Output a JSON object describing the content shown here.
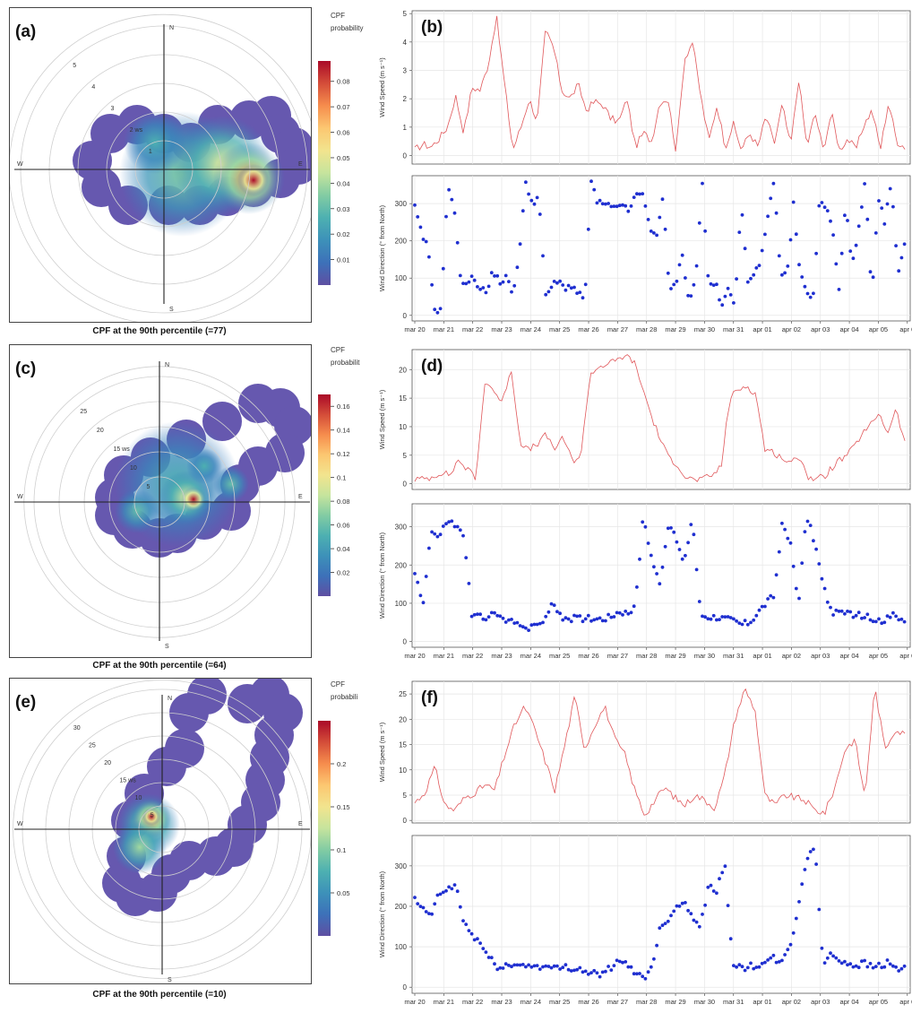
{
  "panels": [
    {
      "cpf": {
        "label": "(a)",
        "legend_title": [
          "CPF",
          "probability"
        ],
        "caption": "CPF at the 90th percentile (=77)",
        "ring_labels": [
          "1",
          "2 ws",
          "3",
          "4",
          "5"
        ],
        "ring_values": [
          1,
          2,
          3,
          4,
          5
        ],
        "compass": [
          "N",
          "E",
          "S",
          "W"
        ],
        "colorbar_ticks": [
          "0.01",
          "0.02",
          "0.03",
          "0.04",
          "0.05",
          "0.06",
          "0.07",
          "0.08"
        ],
        "colorbar_range": [
          0,
          0.088
        ],
        "hotspot_value": "0.088"
      },
      "wind_speed": {
        "label": "(b)",
        "ylabel": "Wind Speed (m s⁻¹)",
        "yticks": [
          "0",
          "1",
          "2",
          "3",
          "4",
          "5"
        ],
        "ylim": [
          -0.3,
          5.1
        ]
      },
      "wind_dir": {
        "ylabel": "Wind Direction (° from North)",
        "yticks": [
          "0",
          "100",
          "200",
          "300"
        ],
        "ylim": [
          -15,
          375
        ]
      }
    },
    {
      "cpf": {
        "label": "(c)",
        "legend_title": [
          "CPF",
          "probabilit"
        ],
        "caption": "CPF at the 90th percentile (=64)",
        "ring_labels": [
          "5",
          "10",
          "15 ws",
          "20",
          "25"
        ],
        "ring_values": [
          5,
          10,
          15,
          20,
          25
        ],
        "compass": [
          "N",
          "E",
          "S",
          "W"
        ],
        "colorbar_ticks": [
          "0.02",
          "0.04",
          "0.06",
          "0.08",
          "0.1",
          "0.12",
          "0.14",
          "0.16"
        ],
        "colorbar_range": [
          0,
          0.17
        ],
        "hotspot_value": "0.17"
      },
      "wind_speed": {
        "label": "(d)",
        "ylabel": "Wind Speed (m s⁻¹)",
        "yticks": [
          "0",
          "5",
          "10",
          "15",
          "20"
        ],
        "ylim": [
          -1,
          23.5
        ]
      },
      "wind_dir": {
        "ylabel": "Wind Direction (° from North)",
        "yticks": [
          "0",
          "100",
          "200",
          "300"
        ],
        "ylim": [
          -15,
          360
        ]
      }
    },
    {
      "cpf": {
        "label": "(e)",
        "legend_title": [
          "CPF",
          "probabili"
        ],
        "caption": "CPF at the 90th percentile (=10)",
        "ring_labels": [
          "5",
          "10",
          "15 ws",
          "20",
          "25",
          "30"
        ],
        "ring_values": [
          5,
          10,
          15,
          20,
          25,
          30
        ],
        "compass": [
          "N",
          "E",
          "S",
          "W"
        ],
        "colorbar_ticks": [
          "0.05",
          "0.1",
          "0.15",
          "0.2"
        ],
        "colorbar_range": [
          0,
          0.25
        ],
        "hotspot_value": "0.25"
      },
      "wind_speed": {
        "label": "(f)",
        "ylabel": "Wind Speed (m s⁻¹)",
        "yticks": [
          "0",
          "5",
          "10",
          "15",
          "20",
          "25"
        ],
        "ylim": [
          -0.5,
          27.5
        ]
      },
      "wind_dir": {
        "ylabel": "Wind Direction (° from North)",
        "yticks": [
          "0",
          "100",
          "200",
          "300"
        ],
        "ylim": [
          -15,
          375
        ]
      }
    }
  ],
  "date_axis": {
    "labels": [
      "mar 20",
      "mar 21",
      "mar 22",
      "mar 23",
      "mar 24",
      "mar 25",
      "mar 26",
      "mar 27",
      "mar 28",
      "mar 29",
      "mar 30",
      "mar 31",
      "apr 01",
      "apr 02",
      "apr 03",
      "apr 04",
      "apr 05",
      "apr 0"
    ]
  },
  "chart_data": [
    {
      "type": "heatmap",
      "description_free": true,
      "r_unit": "ws",
      "hotspots": [
        {
          "dir_deg": 100,
          "ws": 2.7,
          "cpf": 0.088
        },
        {
          "dir_deg": 80,
          "ws": 3.2,
          "cpf": 0.045
        },
        {
          "dir_deg": 115,
          "ws": 2.2,
          "cpf": 0.05
        },
        {
          "dir_deg": 50,
          "ws": 1.9,
          "cpf": 0.03
        }
      ]
    },
    {
      "type": "line",
      "x_start": "mar 20",
      "points_per_day": 8,
      "ws_anchors": [
        0.2,
        0.4,
        0.3,
        0.6,
        1.0,
        2.1,
        0.8,
        2.4,
        2.3,
        3.2,
        4.9,
        2.5,
        0.2,
        1.0,
        2.0,
        1.2,
        4.4,
        3.8,
        2.3,
        2.0,
        2.5,
        1.6,
        1.9,
        1.8,
        1.3,
        1.2,
        2.0,
        0.3,
        0.8,
        0.5,
        1.9,
        2.0,
        0.1,
        3.4,
        4.0,
        2.1,
        0.5,
        1.8,
        0.3,
        1.1,
        0.2,
        0.8,
        0.3,
        1.4,
        0.4,
        1.8,
        0.3,
        2.7,
        0.3,
        1.5,
        0.2,
        1.5,
        0.2,
        0.6,
        0.2,
        1.1,
        1.6,
        0.2,
        1.9,
        0.5,
        0.3
      ]
    },
    {
      "type": "scatter",
      "wd_anchors": [
        290,
        220,
        180,
        20,
        10,
        340,
        300,
        95,
        90,
        100,
        75,
        60,
        120,
        90,
        100,
        60,
        160,
        360,
        300,
        320,
        50,
        80,
        90,
        75,
        80,
        60,
        35,
        360,
        300,
        300,
        290,
        285,
        300,
        280,
        330,
        320,
        230,
        215,
        320,
        60,
        90,
        160,
        40,
        90,
        360,
        80,
        90,
        20,
        70,
        30,
        310,
        80,
        120,
        150,
        250,
        360,
        120,
        100,
        300,
        110,
        70,
        40,
        310,
        290,
        230,
        60,
        310,
        130,
        230,
        360,
        40,
        310,
        250,
        360,
        100,
        200
      ]
    },
    {
      "type": "heatmap",
      "r_unit": "ws",
      "hotspots": [
        {
          "dir_deg": 105,
          "ws": 8.0,
          "cpf": 0.17
        },
        {
          "dir_deg": 135,
          "ws": 8.0,
          "cpf": 0.04
        },
        {
          "dir_deg": 70,
          "ws": 6.0,
          "cpf": 0.05
        }
      ]
    },
    {
      "type": "line",
      "x_start": "mar 20",
      "points_per_day": 8,
      "ws_anchors": [
        0.8,
        0.8,
        1.2,
        2.0,
        1.5,
        4.2,
        2.5,
        1.0,
        18.0,
        16.5,
        14.0,
        20.5,
        7.5,
        5.8,
        7.0,
        8.5,
        6.2,
        8.0,
        4.0,
        5.0,
        19.0,
        20.5,
        21.0,
        21.5,
        22.5,
        21.5,
        17.0,
        12.0,
        8.0,
        4.5,
        3.5,
        1.0,
        0.7,
        0.8,
        1.5,
        3.0,
        15.0,
        16.5,
        17.2,
        15.5,
        6.0,
        5.5,
        4.5,
        3.5,
        5.0,
        1.0,
        0.8,
        1.5,
        3.5,
        4.5,
        6.0,
        8.5,
        10.0,
        12.5,
        9.0,
        13.0,
        7.0
      ]
    },
    {
      "type": "scatter",
      "wd_anchors": [
        180,
        100,
        290,
        270,
        320,
        300,
        280,
        65,
        65,
        65,
        70,
        55,
        50,
        50,
        30,
        45,
        60,
        100,
        65,
        60,
        60,
        62,
        60,
        60,
        65,
        80,
        75,
        85,
        330,
        220,
        150,
        300,
        270,
        200,
        330,
        70,
        65,
        65,
        60,
        55,
        45,
        50,
        75,
        100,
        120,
        300,
        260,
        100,
        330,
        260,
        150,
        80,
        70,
        75,
        70,
        65,
        60,
        55,
        60,
        70,
        55
      ]
    },
    {
      "type": "heatmap",
      "r_unit": "ws",
      "hotspots": [
        {
          "dir_deg": 245,
          "ws": 3.5,
          "cpf": 0.25
        },
        {
          "dir_deg": 215,
          "ws": 6.0,
          "cpf": 0.12
        },
        {
          "dir_deg": 170,
          "ws": 6.0,
          "cpf": 0.05
        }
      ]
    },
    {
      "type": "line",
      "x_start": "mar 20",
      "points_per_day": 8,
      "ws_anchors": [
        3.5,
        5.5,
        10.5,
        3.0,
        2.0,
        4.5,
        5.5,
        7.0,
        6.0,
        13.0,
        19.0,
        22.5,
        18.0,
        12.0,
        6.0,
        15.0,
        24.5,
        14.0,
        19.0,
        22.5,
        16.0,
        13.0,
        6.0,
        1.0,
        4.0,
        6.5,
        4.5,
        3.0,
        5.0,
        4.0,
        2.5,
        9.0,
        20.0,
        26.0,
        22.0,
        5.0,
        3.0,
        5.0,
        4.5,
        4.0,
        2.0,
        1.5,
        6.5,
        14.0,
        16.0,
        4.5,
        26.5,
        14.0,
        18.0,
        17.0
      ]
    },
    {
      "type": "scatter",
      "wd_anchors": [
        215,
        190,
        180,
        230,
        240,
        255,
        160,
        130,
        110,
        75,
        50,
        55,
        50,
        60,
        50,
        55,
        50,
        45,
        48,
        50,
        45,
        40,
        35,
        30,
        50,
        60,
        55,
        40,
        20,
        50,
        140,
        170,
        200,
        210,
        180,
        150,
        250,
        240,
        300,
        60,
        45,
        50,
        55,
        60,
        70,
        60,
        100,
        200,
        320,
        350,
        60,
        80,
        70,
        60,
        55,
        60,
        50,
        55,
        60,
        45,
        50
      ]
    }
  ]
}
